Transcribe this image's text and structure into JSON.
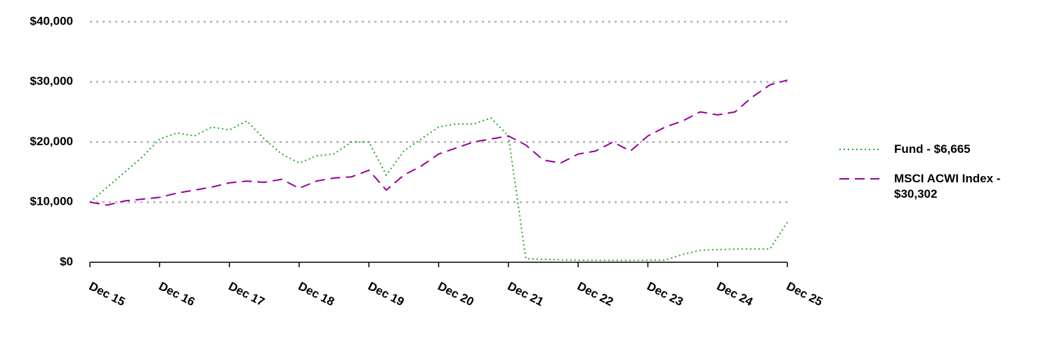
{
  "chart_data": {
    "type": "line",
    "categories": [
      "Dec 15",
      null,
      null,
      null,
      "Dec 16",
      null,
      null,
      null,
      "Dec 17",
      null,
      null,
      null,
      "Dec 18",
      null,
      null,
      null,
      "Dec 19",
      null,
      null,
      null,
      "Dec 20",
      null,
      null,
      null,
      "Dec 21",
      null,
      null,
      null,
      "Dec 22",
      null,
      null,
      null,
      "Dec 23",
      null,
      null,
      null,
      "Dec 24",
      null,
      null,
      null,
      "Dec 25"
    ],
    "series": [
      {
        "name": "Fund - $6,665",
        "color": "#22aa22",
        "dash": "dotted",
        "values": [
          10000,
          12500,
          15000,
          17500,
          20500,
          21500,
          21000,
          22500,
          22000,
          23500,
          20500,
          18000,
          16500,
          17700,
          18000,
          20000,
          20000,
          14500,
          18500,
          20500,
          22500,
          23000,
          23000,
          24000,
          21000,
          600,
          500,
          400,
          350,
          300,
          300,
          300,
          350,
          350,
          1300,
          2000,
          2100,
          2200,
          2200,
          2200,
          6665
        ]
      },
      {
        "name": "MSCI ACWI Index - $30,302",
        "color": "#990099",
        "dash": "dashed",
        "values": [
          10000,
          9500,
          10200,
          10500,
          10800,
          11500,
          12000,
          12500,
          13200,
          13500,
          13300,
          13800,
          12300,
          13500,
          14000,
          14200,
          15300,
          12000,
          14500,
          16000,
          18000,
          19000,
          20000,
          20500,
          21000,
          19500,
          17000,
          16500,
          18000,
          18500,
          20000,
          18500,
          21000,
          22500,
          23500,
          25000,
          24500,
          25000,
          27500,
          29500,
          30302
        ]
      }
    ],
    "ylim": [
      0,
      40000
    ],
    "yticks": [
      {
        "value": 0,
        "label": "$0"
      },
      {
        "value": 10000,
        "label": "$10,000"
      },
      {
        "value": 20000,
        "label": "$20,000"
      },
      {
        "value": 30000,
        "label": "$30,000"
      },
      {
        "value": 40000,
        "label": "$40,000"
      }
    ],
    "grid": true
  }
}
